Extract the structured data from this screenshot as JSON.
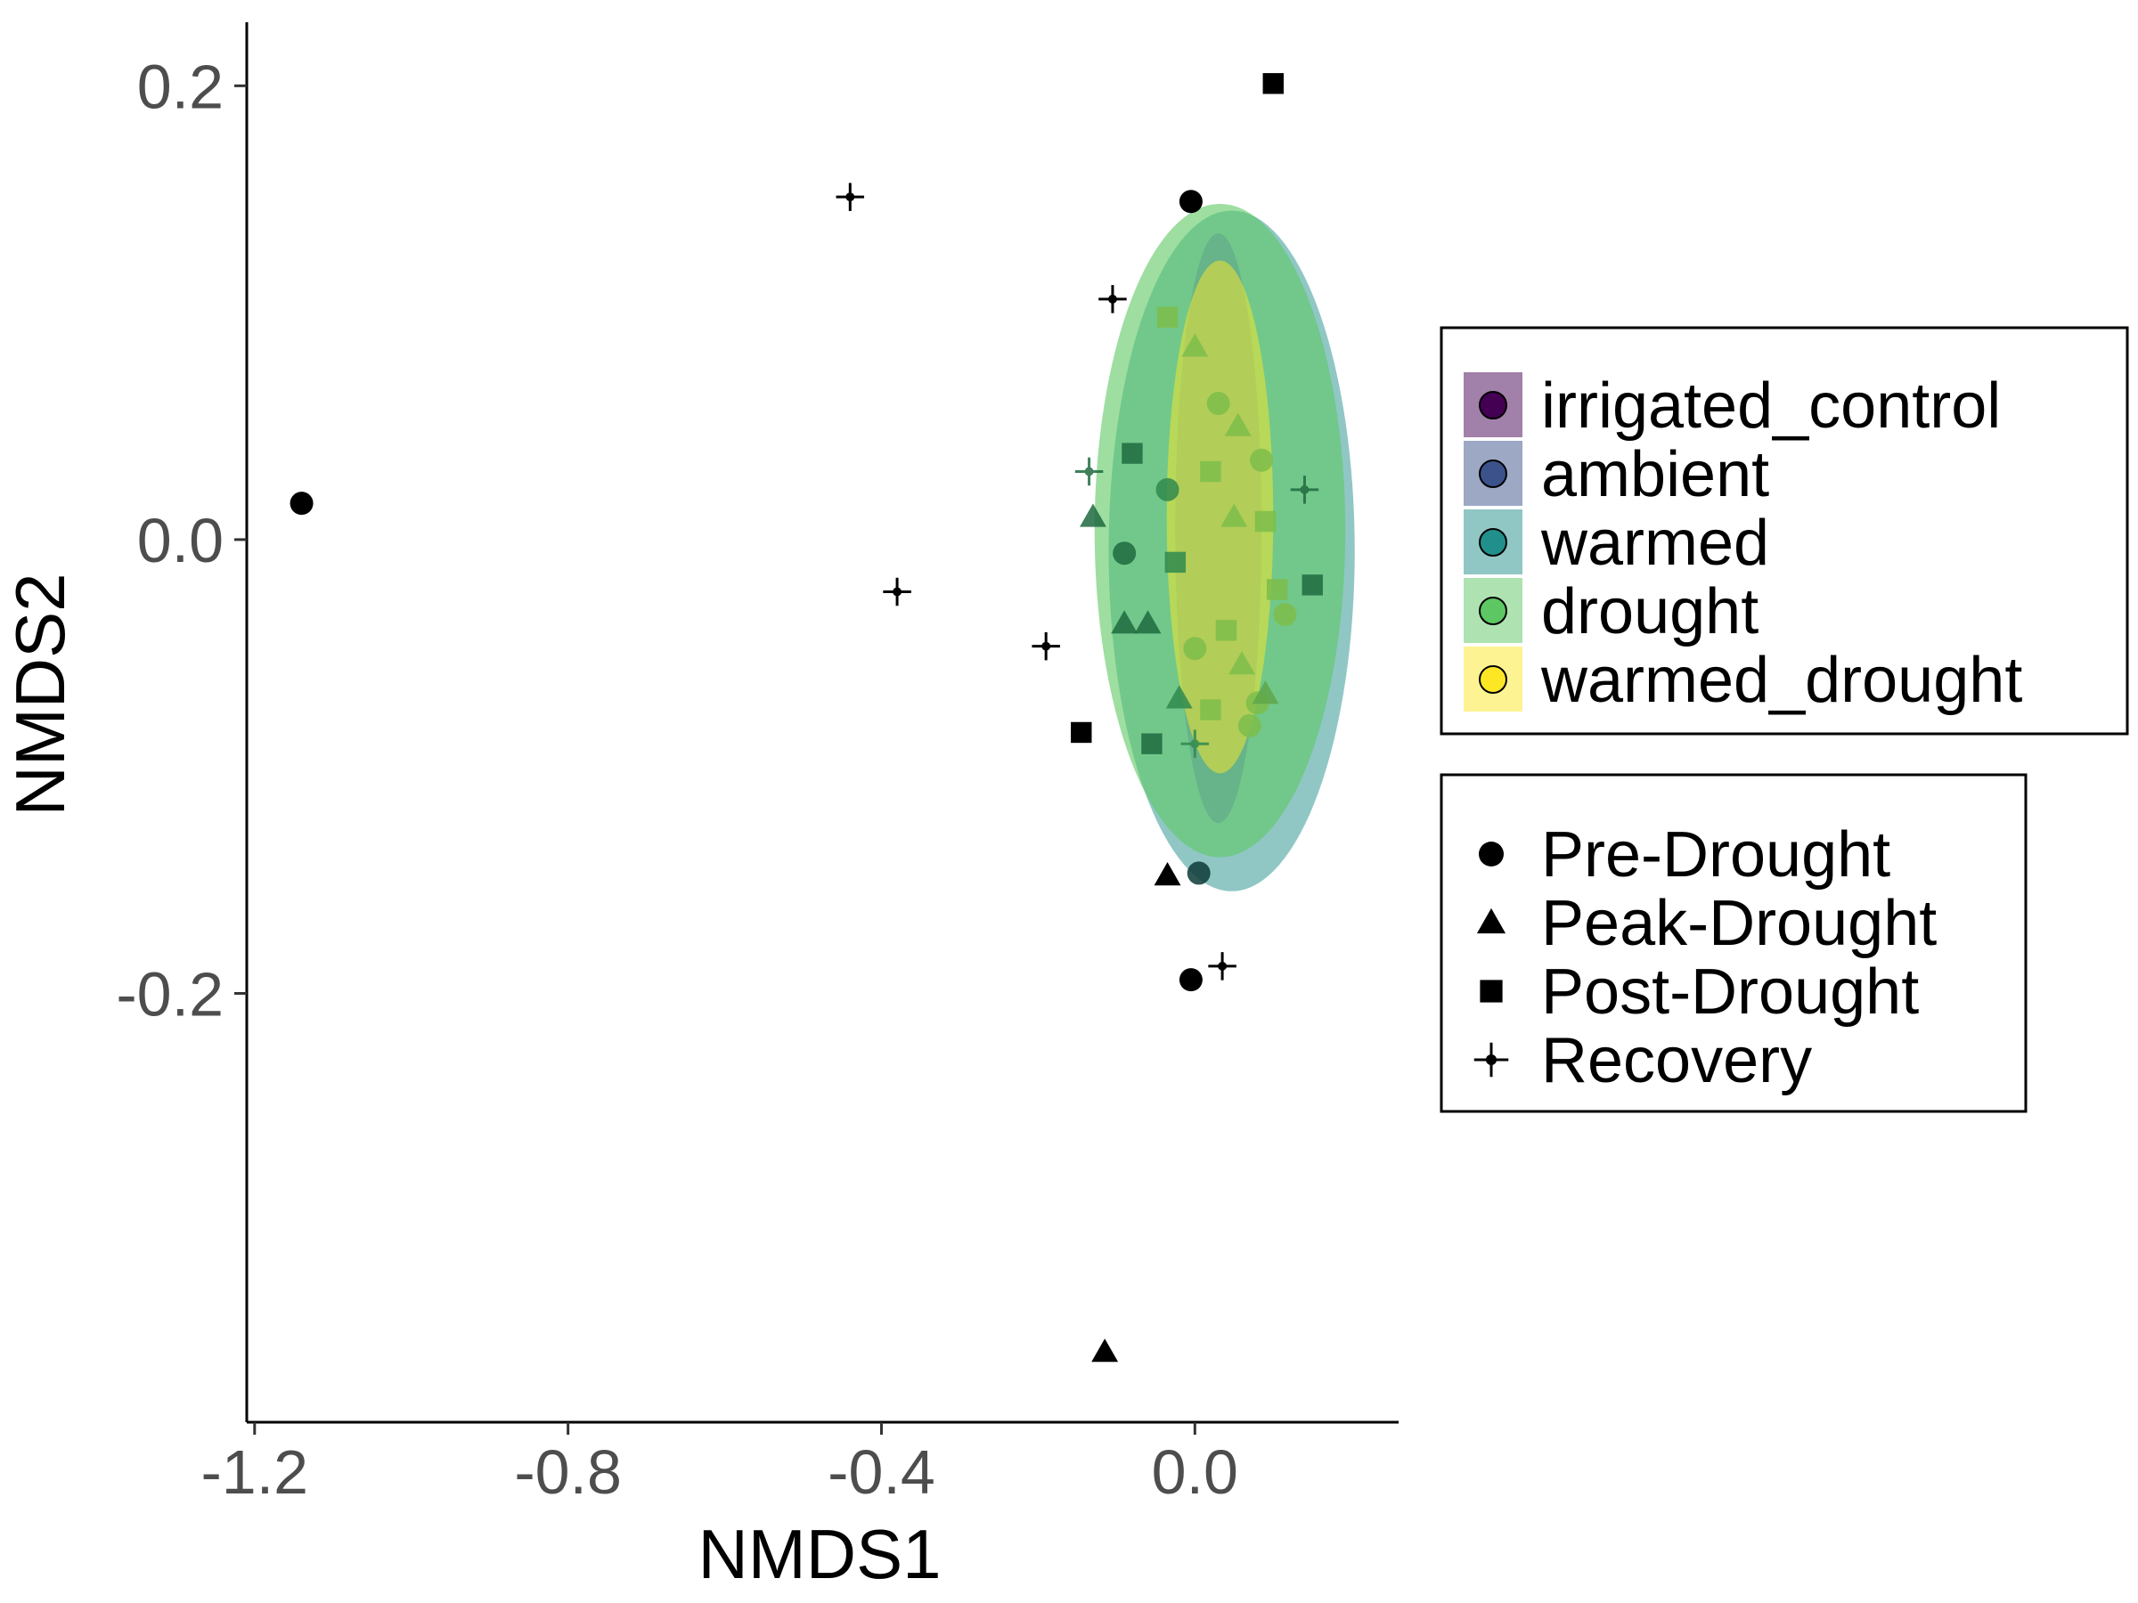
{
  "chart_data": {
    "type": "scatter",
    "title": "",
    "xlabel": "NMDS1",
    "ylabel": "NMDS2",
    "xlim": [
      -1.21,
      0.26
    ],
    "ylim": [
      -0.389,
      0.228
    ],
    "x_ticks": [
      "-1.2",
      "-0.8",
      "-0.4",
      "0.0"
    ],
    "x_tick_values": [
      -1.2,
      -0.8,
      -0.4,
      0.0
    ],
    "y_ticks": [
      "0.2",
      "0.0",
      "-0.2"
    ],
    "y_tick_values": [
      0.2,
      0.0,
      -0.2
    ],
    "grid": false,
    "fill_legend": {
      "entries": [
        {
          "label": "irrigated_control",
          "color": "#440154"
        },
        {
          "label": "ambient",
          "color": "#3b528b"
        },
        {
          "label": "warmed",
          "color": "#21908c"
        },
        {
          "label": "drought",
          "color": "#5dc863"
        },
        {
          "label": "warmed_drought",
          "color": "#fde725"
        }
      ]
    },
    "shape_legend": {
      "entries": [
        {
          "label": "Pre-Drought",
          "shape": "circle"
        },
        {
          "label": "Peak-Drought",
          "shape": "triangle"
        },
        {
          "label": "Post-Drought",
          "shape": "square"
        },
        {
          "label": "Recovery",
          "shape": "cross"
        }
      ]
    },
    "ellipses": [
      {
        "group": "warmed",
        "cx": 0.047,
        "cy": -0.005,
        "rx": 0.157,
        "ry": 0.15,
        "color": "#21908c",
        "opacity": 0.5
      },
      {
        "group": "drought",
        "cx": 0.032,
        "cy": 0.004,
        "rx": 0.16,
        "ry": 0.144,
        "color": "#5dc863",
        "opacity": 0.6
      },
      {
        "group": "ambient",
        "cx": 0.03,
        "cy": 0.005,
        "rx": 0.055,
        "ry": 0.13,
        "color": "#3b528b",
        "opacity": 0.18
      },
      {
        "group": "warmed_drought",
        "cx": 0.032,
        "cy": 0.01,
        "rx": 0.068,
        "ry": 0.113,
        "color": "#fde725",
        "opacity": 0.5
      }
    ],
    "points": [
      {
        "x": -1.14,
        "y": 0.016,
        "shape": "circle",
        "color": "#000000"
      },
      {
        "x": -0.44,
        "y": 0.151,
        "shape": "cross",
        "color": "#000000"
      },
      {
        "x": -0.38,
        "y": -0.023,
        "shape": "cross",
        "color": "#000000"
      },
      {
        "x": -0.19,
        "y": -0.047,
        "shape": "cross",
        "color": "#000000"
      },
      {
        "x": -0.105,
        "y": 0.106,
        "shape": "cross",
        "color": "#000000"
      },
      {
        "x": -0.145,
        "y": -0.085,
        "shape": "square",
        "color": "#000000"
      },
      {
        "x": 0.1,
        "y": 0.201,
        "shape": "square",
        "color": "#000000"
      },
      {
        "x": -0.005,
        "y": 0.149,
        "shape": "circle",
        "color": "#000000"
      },
      {
        "x": -0.035,
        "y": -0.148,
        "shape": "triangle",
        "color": "#000000"
      },
      {
        "x": 0.005,
        "y": -0.147,
        "shape": "circle",
        "color": "#0d3a37"
      },
      {
        "x": -0.005,
        "y": -0.194,
        "shape": "circle",
        "color": "#000000"
      },
      {
        "x": 0.035,
        "y": -0.188,
        "shape": "cross",
        "color": "#000000"
      },
      {
        "x": -0.115,
        "y": -0.358,
        "shape": "triangle",
        "color": "#000000"
      },
      {
        "x": -0.08,
        "y": 0.038,
        "shape": "square",
        "color": "#1f6a3f"
      },
      {
        "x": -0.135,
        "y": 0.03,
        "shape": "cross",
        "color": "#1f6a3f"
      },
      {
        "x": -0.13,
        "y": 0.01,
        "shape": "triangle",
        "color": "#1f6a3f"
      },
      {
        "x": -0.09,
        "y": -0.006,
        "shape": "circle",
        "color": "#1f6a3f"
      },
      {
        "x": -0.09,
        "y": -0.037,
        "shape": "triangle",
        "color": "#1f6a3f"
      },
      {
        "x": -0.06,
        "y": -0.037,
        "shape": "triangle",
        "color": "#1f6a3f"
      },
      {
        "x": -0.055,
        "y": -0.09,
        "shape": "square",
        "color": "#1f6a3f"
      },
      {
        "x": -0.035,
        "y": 0.022,
        "shape": "circle",
        "color": "#2f8a4d"
      },
      {
        "x": -0.035,
        "y": 0.098,
        "shape": "square",
        "color": "#7dbd4a"
      },
      {
        "x": -0.025,
        "y": -0.01,
        "shape": "square",
        "color": "#2f8a4d"
      },
      {
        "x": -0.02,
        "y": -0.07,
        "shape": "triangle",
        "color": "#2f8a4d"
      },
      {
        "x": 0.0,
        "y": -0.09,
        "shape": "cross",
        "color": "#2f8a4d"
      },
      {
        "x": 0.02,
        "y": -0.075,
        "shape": "square",
        "color": "#7dbd4a"
      },
      {
        "x": 0.0,
        "y": 0.085,
        "shape": "triangle",
        "color": "#7dbd4a"
      },
      {
        "x": 0.03,
        "y": 0.06,
        "shape": "circle",
        "color": "#7dbd4a"
      },
      {
        "x": 0.02,
        "y": 0.03,
        "shape": "square",
        "color": "#7dbd4a"
      },
      {
        "x": 0.05,
        "y": 0.01,
        "shape": "triangle",
        "color": "#7dbd4a"
      },
      {
        "x": 0.0,
        "y": -0.048,
        "shape": "circle",
        "color": "#7dbd4a"
      },
      {
        "x": 0.04,
        "y": -0.04,
        "shape": "square",
        "color": "#7dbd4a"
      },
      {
        "x": 0.06,
        "y": -0.055,
        "shape": "triangle",
        "color": "#7dbd4a"
      },
      {
        "x": 0.07,
        "y": -0.082,
        "shape": "circle",
        "color": "#7dbd4a"
      },
      {
        "x": 0.08,
        "y": -0.072,
        "shape": "circle",
        "color": "#7dbd4a"
      },
      {
        "x": 0.09,
        "y": -0.068,
        "shape": "triangle",
        "color": "#5ea64a"
      },
      {
        "x": 0.105,
        "y": -0.022,
        "shape": "square",
        "color": "#7dbd4a"
      },
      {
        "x": 0.115,
        "y": -0.033,
        "shape": "circle",
        "color": "#7dbd4a"
      },
      {
        "x": 0.085,
        "y": 0.035,
        "shape": "circle",
        "color": "#7dbd4a"
      },
      {
        "x": 0.055,
        "y": 0.05,
        "shape": "triangle",
        "color": "#7dbd4a"
      },
      {
        "x": 0.09,
        "y": 0.008,
        "shape": "square",
        "color": "#7dbd4a"
      },
      {
        "x": 0.15,
        "y": -0.02,
        "shape": "square",
        "color": "#1f6a3f"
      },
      {
        "x": 0.14,
        "y": 0.022,
        "shape": "cross",
        "color": "#1f6a3f"
      }
    ]
  }
}
